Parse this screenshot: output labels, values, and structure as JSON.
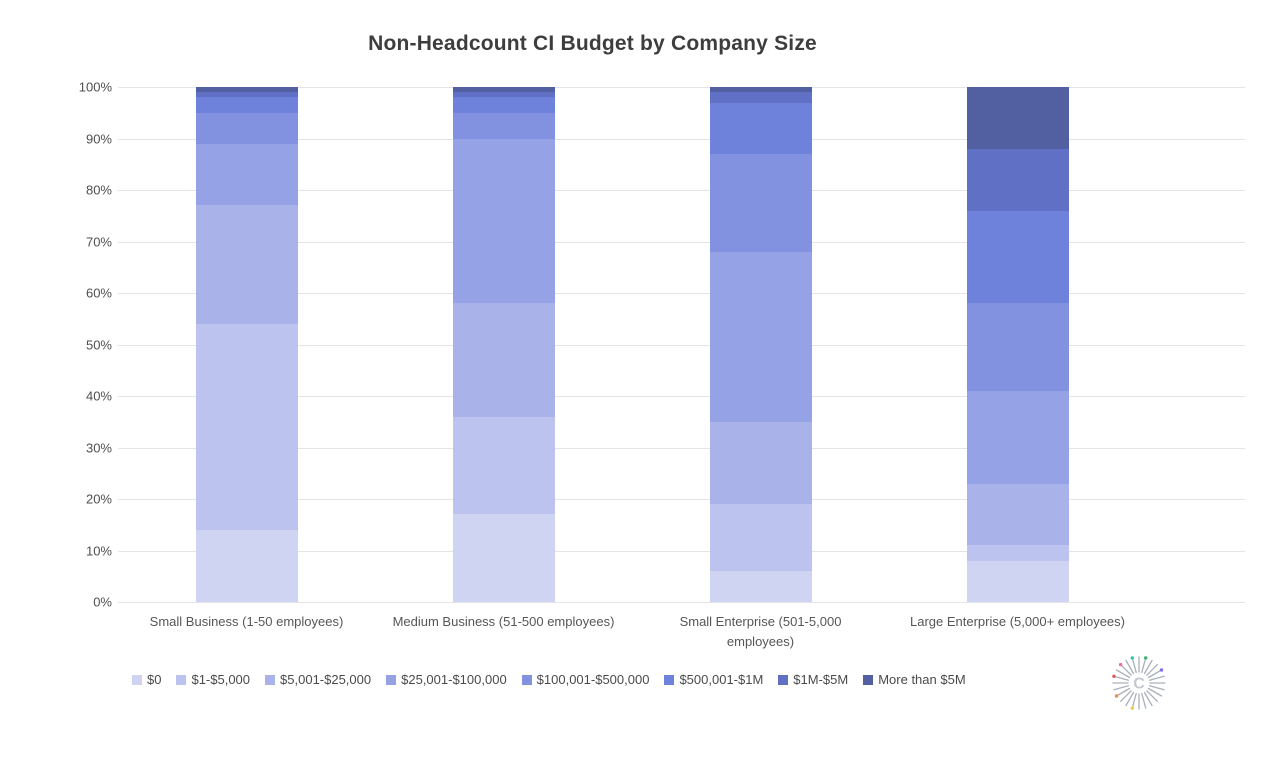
{
  "chart_data": {
    "type": "bar",
    "variant": "stacked-100",
    "title": "Non-Headcount CI Budget by Company Size",
    "xlabel": "",
    "ylabel": "",
    "ylim": [
      0,
      100
    ],
    "grid": true,
    "legend_position": "bottom",
    "yticks": [
      "100%",
      "90%",
      "80%",
      "70%",
      "60%",
      "50%",
      "40%",
      "30%",
      "20%",
      "10%",
      "0%"
    ],
    "categories": [
      "Small Business (1-50 employees)",
      "Medium Business (51-500 employees)",
      "Small Enterprise (501-5,000 employees)",
      "Large Enterprise (5,000+ employees)"
    ],
    "series": [
      {
        "name": "$0",
        "color": "#cfd4f3",
        "values": [
          14,
          17,
          6,
          8
        ]
      },
      {
        "name": "$1-$5,000",
        "color": "#bcc3ef",
        "values": [
          40,
          19,
          13,
          3
        ]
      },
      {
        "name": "$5,001-$25,000",
        "color": "#a9b3ea",
        "values": [
          23,
          22,
          16,
          12
        ]
      },
      {
        "name": "$25,001-$100,000",
        "color": "#95a2e5",
        "values": [
          12,
          32,
          33,
          18
        ]
      },
      {
        "name": "$100,001-$500,000",
        "color": "#8292e0",
        "values": [
          6,
          5,
          19,
          17
        ]
      },
      {
        "name": "$500,001-$1M",
        "color": "#6e81db",
        "values": [
          3,
          3,
          10,
          18
        ]
      },
      {
        "name": "$1M-$5M",
        "color": "#6070c4",
        "values": [
          1,
          1,
          2,
          12
        ]
      },
      {
        "name": "More than $5M",
        "color": "#525fa1",
        "values": [
          1,
          1,
          1,
          12
        ]
      }
    ]
  },
  "logo": {
    "letter": "C"
  }
}
